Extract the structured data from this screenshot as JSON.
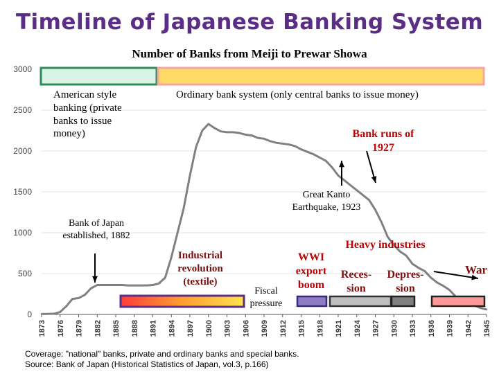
{
  "page": {
    "title": "Timeline of Japanese Banking System",
    "note_line1": "Coverage: \"national\" banks, private and ordinary banks and special banks.",
    "note_line2": "Source: Bank of Japan (Historical Statistics of Japan, vol.3, p.166)"
  },
  "annotations": {
    "american": "American style banking (private banks to issue money)",
    "ordinary": "Ordinary bank system (only central banks to issue money)",
    "bank_runs": "Bank runs of 1927",
    "kanto": "Great Kanto Earthquake, 1923",
    "boj": "Bank of Japan established, 1882",
    "industrial": "Industrial revolution (textile)",
    "fiscal": "Fiscal pressure",
    "wwi": "WWI export boom",
    "heavy": "Heavy industries",
    "recession": "Reces-sion",
    "depression": "Depres-sion",
    "war": "War"
  },
  "colors": {
    "title": "#5b2d86",
    "line": "#808080",
    "green_box_fill": "#d9f2e6",
    "green_box_stroke": "#2e8b57",
    "yellow_bar_fill": "#ffd966",
    "yellow_bar_stroke": "#f4a6a6",
    "rainbow_bar": "#ff4040 / #ffcc00",
    "red_bar_fill": "#ff9999",
    "blue_bar": "#7030a0",
    "gray_bar": "#bfbfbf",
    "dark_gray_bar": "#808080"
  },
  "chart_data": {
    "type": "line",
    "title": "Number of Banks from Meiji to Prewar Showa",
    "xlabel": "",
    "ylabel": "",
    "xlim": [
      1873,
      1945
    ],
    "ylim": [
      0,
      3000
    ],
    "yticks": [
      0,
      500,
      1000,
      1500,
      2000,
      2500,
      3000
    ],
    "xticks": [
      1873,
      1876,
      1879,
      1882,
      1885,
      1888,
      1891,
      1894,
      1897,
      1900,
      1903,
      1906,
      1909,
      1912,
      1915,
      1918,
      1921,
      1924,
      1927,
      1930,
      1933,
      1936,
      1939,
      1942,
      1945
    ],
    "series": [
      {
        "x": [
          1873,
          1875,
          1876,
          1877,
          1878,
          1879,
          1880,
          1881,
          1882,
          1883,
          1884,
          1885,
          1886,
          1887,
          1888,
          1889,
          1890,
          1891,
          1892,
          1893,
          1894,
          1895,
          1896,
          1897,
          1898,
          1899,
          1900,
          1901,
          1902,
          1903,
          1904,
          1905,
          1906,
          1907,
          1908,
          1909,
          1910,
          1911,
          1912,
          1913,
          1914,
          1915,
          1916,
          1917,
          1918,
          1919,
          1920,
          1921,
          1922,
          1923,
          1924,
          1925,
          1926,
          1927,
          1928,
          1929,
          1930,
          1931,
          1932,
          1933,
          1934,
          1935,
          1936,
          1937,
          1938,
          1939,
          1940,
          1941,
          1942,
          1943,
          1944,
          1945
        ],
        "values": [
          5,
          8,
          30,
          100,
          190,
          200,
          240,
          320,
          360,
          360,
          360,
          360,
          360,
          355,
          355,
          355,
          355,
          360,
          380,
          450,
          700,
          1000,
          1300,
          1700,
          2050,
          2250,
          2330,
          2280,
          2240,
          2230,
          2230,
          2220,
          2200,
          2190,
          2160,
          2150,
          2120,
          2100,
          2090,
          2080,
          2060,
          2020,
          1990,
          1960,
          1920,
          1880,
          1800,
          1700,
          1640,
          1580,
          1520,
          1460,
          1400,
          1280,
          1130,
          950,
          850,
          770,
          720,
          620,
          570,
          530,
          450,
          390,
          350,
          300,
          220,
          160,
          140,
          110,
          80,
          60
        ]
      }
    ]
  }
}
